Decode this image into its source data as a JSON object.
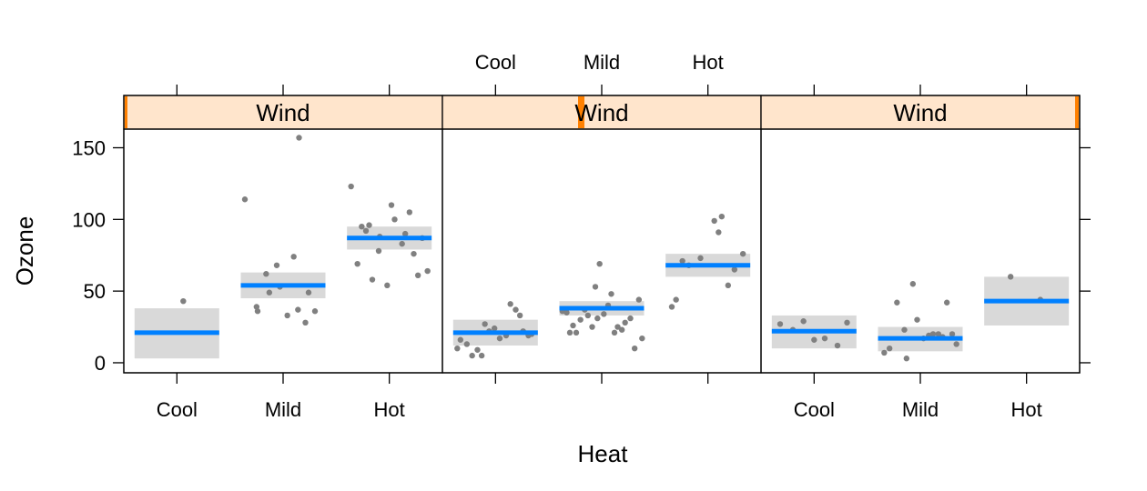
{
  "chart_data": {
    "type": "scatter",
    "xlabel": "Heat",
    "ylabel": "Ozone",
    "categories": [
      "Cool",
      "Mild",
      "Hot"
    ],
    "ylim": [
      -7,
      163
    ],
    "yticks": [
      0,
      50,
      100,
      150
    ],
    "grid": false,
    "strip_label": "Wind",
    "colors": {
      "strip_bg": "#ffe5cc",
      "strip_indicator": "#ff8000",
      "points": "#808080",
      "ci_band": "#d9d9d9",
      "fit_line": "#0080ff"
    },
    "panels": [
      {
        "strip": "Wind",
        "groups": [
          {
            "category": "Cool",
            "estimate": 21,
            "ci": [
              3,
              38
            ],
            "points": [
              [
                0.06,
                43
              ]
            ]
          },
          {
            "category": "Mild",
            "estimate": 54,
            "ci": [
              45,
              63
            ],
            "points": [
              [
                -0.36,
                114
              ],
              [
                0.15,
                157
              ],
              [
                -0.25,
                39
              ],
              [
                -0.16,
                62
              ],
              [
                -0.24,
                36
              ],
              [
                -0.06,
                68
              ],
              [
                -0.13,
                49
              ],
              [
                0.1,
                74
              ],
              [
                -0.03,
                53
              ],
              [
                0.04,
                33
              ],
              [
                0.14,
                37
              ],
              [
                0.21,
                28
              ],
              [
                0.24,
                49
              ],
              [
                0.3,
                36
              ]
            ]
          },
          {
            "category": "Hot",
            "estimate": 87,
            "ci": [
              79,
              95
            ],
            "points": [
              [
                -0.36,
                123
              ],
              [
                -0.3,
                69
              ],
              [
                -0.26,
                95
              ],
              [
                -0.19,
                96
              ],
              [
                -0.22,
                92
              ],
              [
                -0.16,
                58
              ],
              [
                -0.1,
                78
              ],
              [
                -0.09,
                88
              ],
              [
                -0.02,
                54
              ],
              [
                0.02,
                110
              ],
              [
                0.05,
                100
              ],
              [
                0.15,
                90
              ],
              [
                0.12,
                83
              ],
              [
                0.19,
                105
              ],
              [
                0.23,
                76
              ],
              [
                0.27,
                61
              ],
              [
                0.31,
                87
              ],
              [
                0.36,
                64
              ]
            ]
          }
        ]
      },
      {
        "strip": "Wind",
        "groups": [
          {
            "category": "Cool",
            "estimate": 21,
            "ci": [
              12,
              30
            ],
            "points": [
              [
                -0.36,
                10
              ],
              [
                -0.33,
                16
              ],
              [
                -0.27,
                13
              ],
              [
                -0.22,
                5
              ],
              [
                -0.17,
                9
              ],
              [
                -0.13,
                5
              ],
              [
                -0.1,
                27
              ],
              [
                -0.06,
                22
              ],
              [
                -0.01,
                24
              ],
              [
                0.04,
                17
              ],
              [
                0.1,
                19
              ],
              [
                0.14,
                41
              ],
              [
                0.19,
                37
              ],
              [
                0.23,
                33
              ],
              [
                0.26,
                22
              ],
              [
                0.31,
                19
              ],
              [
                0.34,
                20
              ]
            ]
          },
          {
            "category": "Mild",
            "estimate": 38,
            "ci": [
              33,
              43
            ],
            "points": [
              [
                -0.37,
                36
              ],
              [
                -0.33,
                35
              ],
              [
                -0.3,
                21
              ],
              [
                -0.27,
                26
              ],
              [
                -0.24,
                21
              ],
              [
                -0.2,
                30
              ],
              [
                -0.16,
                37
              ],
              [
                -0.13,
                33
              ],
              [
                -0.09,
                25
              ],
              [
                -0.06,
                53
              ],
              [
                -0.04,
                31
              ],
              [
                -0.02,
                69
              ],
              [
                0.02,
                34
              ],
              [
                0.06,
                40
              ],
              [
                0.09,
                48
              ],
              [
                0.12,
                21
              ],
              [
                0.15,
                25
              ],
              [
                0.19,
                23
              ],
              [
                0.22,
                28
              ],
              [
                0.27,
                31
              ],
              [
                0.31,
                10
              ],
              [
                0.35,
                44
              ],
              [
                0.38,
                17
              ]
            ]
          },
          {
            "category": "Hot",
            "estimate": 68,
            "ci": [
              60,
              76
            ],
            "points": [
              [
                -0.34,
                39
              ],
              [
                -0.3,
                44
              ],
              [
                -0.24,
                71
              ],
              [
                -0.18,
                68
              ],
              [
                -0.07,
                73
              ],
              [
                0.06,
                99
              ],
              [
                0.1,
                91
              ],
              [
                0.13,
                102
              ],
              [
                0.19,
                54
              ],
              [
                0.25,
                65
              ],
              [
                0.33,
                76
              ]
            ]
          }
        ]
      },
      {
        "strip": "Wind",
        "groups": [
          {
            "category": "Cool",
            "estimate": 22,
            "ci": [
              10,
              33
            ],
            "points": [
              [
                -0.32,
                27
              ],
              [
                -0.2,
                23
              ],
              [
                -0.1,
                29
              ],
              [
                0.0,
                16
              ],
              [
                0.1,
                17
              ],
              [
                0.22,
                12
              ],
              [
                0.31,
                28
              ]
            ]
          },
          {
            "category": "Mild",
            "estimate": 17,
            "ci": [
              8,
              25
            ],
            "points": [
              [
                -0.34,
                7
              ],
              [
                -0.29,
                10
              ],
              [
                -0.22,
                42
              ],
              [
                -0.15,
                23
              ],
              [
                -0.07,
                55
              ],
              [
                -0.13,
                3
              ],
              [
                -0.03,
                30
              ],
              [
                0.03,
                17
              ],
              [
                0.08,
                19
              ],
              [
                0.12,
                20
              ],
              [
                0.17,
                20
              ],
              [
                0.21,
                18
              ],
              [
                0.25,
                42
              ],
              [
                0.3,
                20
              ],
              [
                0.34,
                13
              ]
            ]
          },
          {
            "category": "Hot",
            "estimate": 43,
            "ci": [
              26,
              60
            ],
            "points": [
              [
                -0.15,
                60
              ],
              [
                0.13,
                44
              ]
            ]
          }
        ]
      }
    ]
  }
}
